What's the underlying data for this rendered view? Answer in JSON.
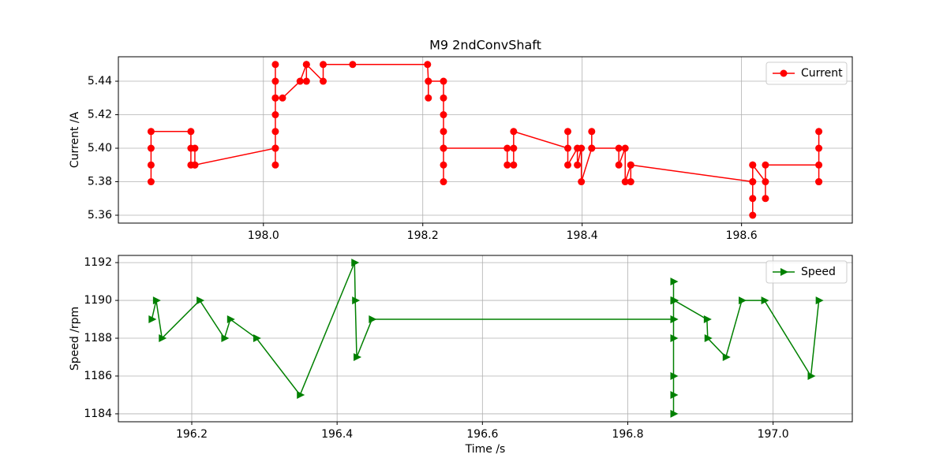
{
  "chart_data": [
    {
      "type": "line",
      "title": "M9 2ndConvShaft",
      "ylabel": "Current /A",
      "grid": true,
      "legend": "upper right",
      "xlim": [
        197.818,
        198.739
      ],
      "ylim": [
        5.3553,
        5.4546
      ],
      "xticks": [
        {
          "value": 198,
          "label": "198.0"
        },
        198.2,
        198.4,
        198.6
      ],
      "yticks": [
        5.36,
        5.38,
        {
          "value": 5.4,
          "label": "5.40"
        },
        5.42,
        5.44
      ],
      "series": [
        {
          "name": "Current",
          "color": "#ff0000",
          "marker": "circle",
          "x": [
            197.859,
            197.859,
            197.859,
            197.859,
            197.909,
            197.909,
            197.909,
            197.914,
            197.914,
            197.914,
            198.015,
            198.015,
            198.015,
            198.015,
            198.015,
            198.015,
            198.015,
            198.015,
            198.015,
            198.024,
            198.046,
            198.054,
            198.054,
            198.054,
            198.075,
            198.075,
            198.112,
            198.206,
            198.207,
            198.207,
            198.207,
            198.226,
            198.226,
            198.226,
            198.226,
            198.226,
            198.226,
            198.226,
            198.226,
            198.306,
            198.306,
            198.314,
            198.314,
            198.314,
            198.382,
            198.382,
            198.382,
            198.394,
            198.394,
            198.399,
            198.399,
            198.412,
            198.412,
            198.412,
            198.446,
            198.446,
            198.454,
            198.454,
            198.461,
            198.461,
            198.461,
            198.614,
            198.614,
            198.614,
            198.614,
            198.614,
            198.614,
            198.63,
            198.63,
            198.63,
            198.697,
            198.697,
            198.697,
            198.697,
            198.697
          ],
          "values": [
            5.38,
            5.39,
            5.4,
            5.41,
            5.41,
            5.4,
            5.39,
            5.39,
            5.4,
            5.39,
            5.4,
            5.39,
            5.4,
            5.41,
            5.42,
            5.43,
            5.44,
            5.45,
            5.43,
            5.43,
            5.44,
            5.45,
            5.44,
            5.45,
            5.44,
            5.45,
            5.45,
            5.45,
            5.44,
            5.43,
            5.44,
            5.44,
            5.43,
            5.42,
            5.41,
            5.4,
            5.39,
            5.38,
            5.4,
            5.4,
            5.39,
            5.39,
            5.4,
            5.41,
            5.4,
            5.41,
            5.39,
            5.4,
            5.39,
            5.4,
            5.38,
            5.4,
            5.41,
            5.4,
            5.4,
            5.39,
            5.4,
            5.38,
            5.39,
            5.38,
            5.39,
            5.38,
            5.39,
            5.37,
            5.36,
            5.38,
            5.39,
            5.38,
            5.37,
            5.39,
            5.39,
            5.38,
            5.4,
            5.41,
            5.38
          ]
        }
      ]
    },
    {
      "type": "line",
      "xlabel": "Time /s",
      "ylabel": "Speed /rpm",
      "grid": true,
      "legend": "upper right",
      "xlim": [
        196.099,
        197.109
      ],
      "ylim": [
        1183.58,
        1192.38
      ],
      "xticks": [
        196.2,
        196.4,
        196.6,
        196.8,
        {
          "value": 197,
          "label": "197.0"
        }
      ],
      "yticks": [
        1184,
        1186,
        1188,
        1190,
        1192
      ],
      "series": [
        {
          "name": "Speed",
          "color": "#008000",
          "marker": "triangle-right",
          "x": [
            196.145,
            196.151,
            196.159,
            196.211,
            196.245,
            196.253,
            196.289,
            196.349,
            196.424,
            196.425,
            196.427,
            196.448,
            196.863,
            196.863,
            196.863,
            196.863,
            196.863,
            196.863,
            196.863,
            196.863,
            196.863,
            196.864,
            196.909,
            196.91,
            196.935,
            196.957,
            196.988,
            197.052,
            197.063
          ],
          "values": [
            1189,
            1190,
            1188,
            1190,
            1188,
            1189,
            1188,
            1185,
            1192,
            1190,
            1187,
            1189,
            1189,
            1191,
            1190,
            1188,
            1186,
            1185,
            1184,
            1189,
            1190,
            1190,
            1189,
            1188,
            1187,
            1190,
            1190,
            1186,
            1190
          ]
        }
      ]
    }
  ]
}
